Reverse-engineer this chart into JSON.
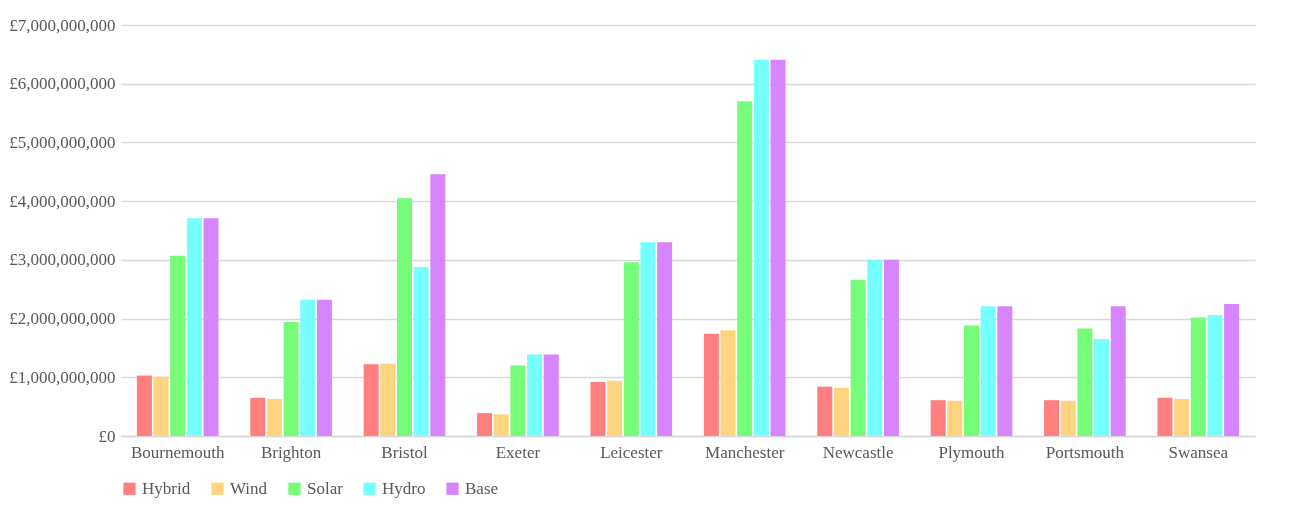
{
  "chart_data": {
    "type": "bar",
    "categories": [
      "Bournemouth",
      "Brighton",
      "Bristol",
      "Exeter",
      "Leicester",
      "Manchester",
      "Newcastle",
      "Plymouth",
      "Portsmouth",
      "Swansea"
    ],
    "series": [
      {
        "name": "Hybrid",
        "color": "#ff7f7f",
        "values": [
          1030000000,
          650000000,
          1220000000,
          390000000,
          920000000,
          1740000000,
          840000000,
          610000000,
          610000000,
          650000000
        ]
      },
      {
        "name": "Wind",
        "color": "#ffd47f",
        "values": [
          1010000000,
          630000000,
          1230000000,
          370000000,
          940000000,
          1800000000,
          820000000,
          600000000,
          600000000,
          630000000
        ]
      },
      {
        "name": "Solar",
        "color": "#75fc78",
        "values": [
          3070000000,
          1940000000,
          4050000000,
          1200000000,
          2960000000,
          5700000000,
          2660000000,
          1880000000,
          1830000000,
          2020000000
        ]
      },
      {
        "name": "Hydro",
        "color": "#75ffff",
        "values": [
          3710000000,
          2320000000,
          2880000000,
          1390000000,
          3300000000,
          6410000000,
          3000000000,
          2210000000,
          1650000000,
          2060000000
        ]
      },
      {
        "name": "Base",
        "color": "#d785fd",
        "values": [
          3710000000,
          2320000000,
          4460000000,
          1390000000,
          3300000000,
          6410000000,
          3000000000,
          2210000000,
          2210000000,
          2250000000
        ]
      }
    ],
    "ylim": [
      0,
      7000000000
    ],
    "yticks": [
      {
        "value": 0,
        "label": "£0"
      },
      {
        "value": 1000000000,
        "label": "£1,000,000,000"
      },
      {
        "value": 2000000000,
        "label": "£2,000,000,000"
      },
      {
        "value": 3000000000,
        "label": "£3,000,000,000"
      },
      {
        "value": 4000000000,
        "label": "£4,000,000,000"
      },
      {
        "value": 5000000000,
        "label": "£5,000,000,000"
      },
      {
        "value": 6000000000,
        "label": "£6,000,000,000"
      },
      {
        "value": 7000000000,
        "label": "£7,000,000,000"
      }
    ],
    "grid": "y",
    "legend": "bottom"
  }
}
